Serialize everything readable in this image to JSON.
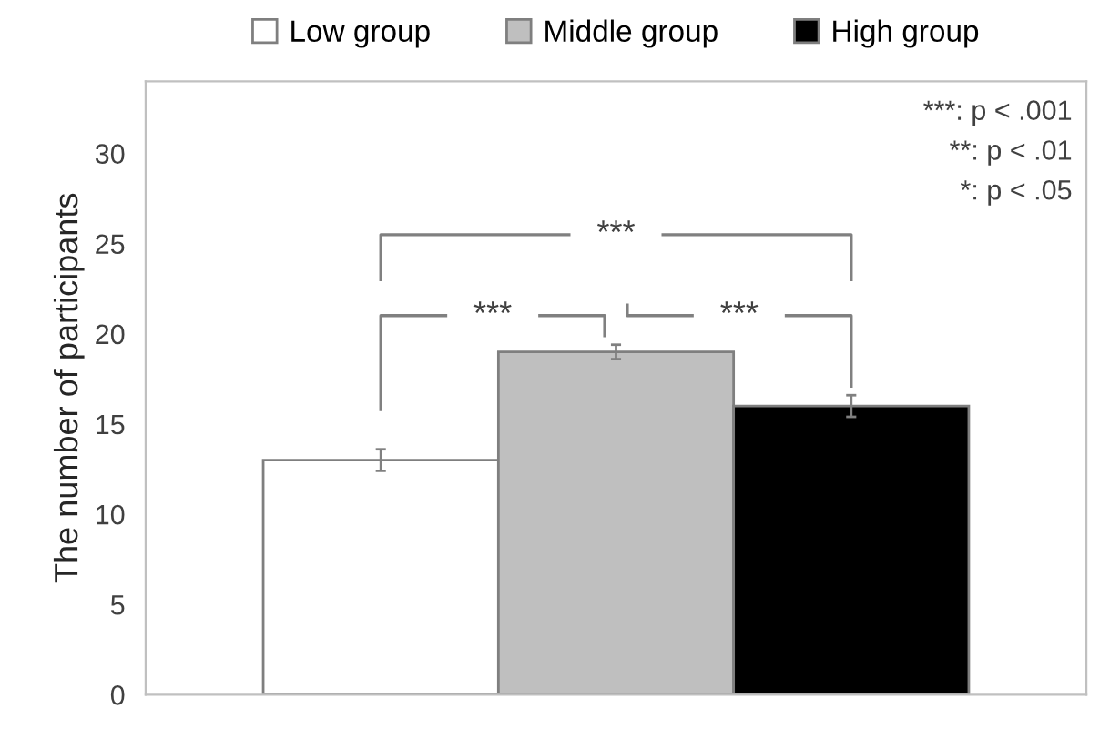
{
  "chart_data": {
    "type": "bar",
    "ylabel": "The number of participants",
    "categories": [
      null
    ],
    "series": [
      {
        "name": "Low group",
        "color": "#ffffff",
        "values": [
          13
        ],
        "errors": [
          0.6
        ]
      },
      {
        "name": "Middle group",
        "color": "#bfbfbf",
        "values": [
          19
        ],
        "errors": [
          0.4
        ]
      },
      {
        "name": "High group",
        "color": "#000000",
        "values": [
          16
        ],
        "errors": [
          0.6
        ]
      }
    ],
    "ylim": [
      0,
      34
    ],
    "yticks": [
      0,
      5,
      10,
      15,
      20,
      25,
      30
    ],
    "grid": false,
    "legend": "top",
    "tick_labels": "y",
    "annotations": [
      "***",
      "***",
      "***",
      "***: p < .001",
      "**: p < .01",
      "*: p < .05"
    ]
  }
}
